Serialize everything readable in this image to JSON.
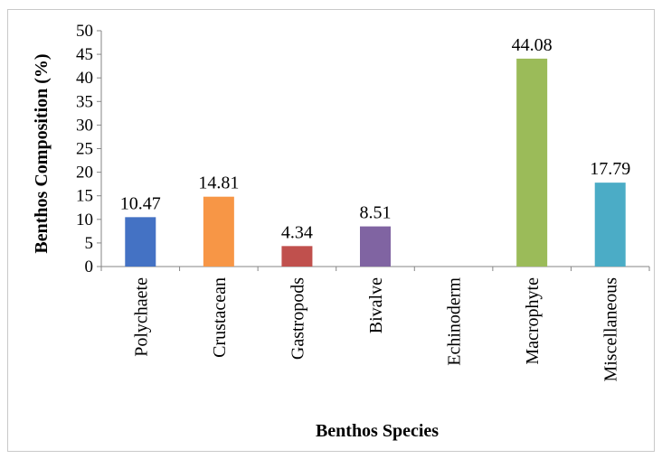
{
  "chart_data": {
    "type": "bar",
    "title": "",
    "xlabel": "Benthos Species",
    "ylabel": "Benthos Composition (%)",
    "ylim": [
      0,
      50
    ],
    "yticks": [
      0,
      5,
      10,
      15,
      20,
      25,
      30,
      35,
      40,
      45,
      50
    ],
    "categories": [
      "Polychaete",
      "Crustacean",
      "Gastropods",
      "Bivalve",
      "Echinoderm",
      "Macrophyte",
      "Miscellaneous"
    ],
    "values": [
      10.47,
      14.81,
      4.34,
      8.51,
      0,
      44.08,
      17.79
    ],
    "data_labels": [
      "10.47",
      "14.81",
      "4.34",
      "8.51",
      "",
      "44.08",
      "17.79"
    ],
    "colors": [
      "#4472c4",
      "#f79646",
      "#c0504d",
      "#8064a2",
      "#4bacc6",
      "#9bbb59",
      "#4bacc6"
    ],
    "grid": false,
    "legend": "none"
  }
}
